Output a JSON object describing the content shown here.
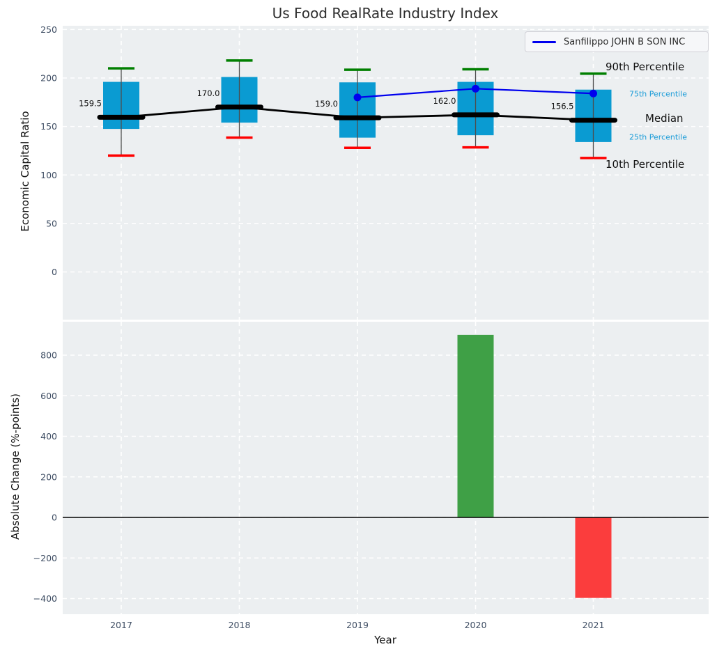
{
  "title": "Us Food RealRate Industry Index",
  "chart_data": [
    {
      "type": "boxplot",
      "title": "Us Food RealRate Industry Index",
      "ylabel": "Economic Capital Ratio",
      "categories": [
        "2017",
        "2018",
        "2019",
        "2020",
        "2021"
      ],
      "yticks": [
        250,
        200,
        150,
        100,
        50,
        0
      ],
      "ylim": [
        -50,
        254
      ],
      "grid": "white-dashed",
      "legend_position": "upper-right",
      "boxes": [
        {
          "year": "2017",
          "p10": 120,
          "p25": 147.5,
          "median": 159.5,
          "p75": 196,
          "p90": 210,
          "label": "159.5"
        },
        {
          "year": "2018",
          "p10": 138.5,
          "p25": 154,
          "median": 170.0,
          "p75": 201,
          "p90": 218,
          "label": "170.0"
        },
        {
          "year": "2019",
          "p10": 128,
          "p25": 138.5,
          "median": 159.0,
          "p75": 195.5,
          "p90": 208.5,
          "label": "159.0"
        },
        {
          "year": "2020",
          "p10": 128.5,
          "p25": 141,
          "median": 162.0,
          "p75": 196,
          "p90": 209,
          "label": "162.0"
        },
        {
          "year": "2021",
          "p10": 117.5,
          "p25": 134,
          "median": 156.5,
          "p75": 188,
          "p90": 204.5,
          "label": "156.5"
        }
      ],
      "series": [
        {
          "name": "Sanfilippo JOHN B SON INC",
          "color": "#0000ee",
          "points": [
            {
              "year": "2019",
              "value": 180
            },
            {
              "year": "2020",
              "value": 189
            },
            {
              "year": "2021",
              "value": 184
            }
          ]
        }
      ],
      "annotations": [
        {
          "text": "90th Percentile",
          "color": "#111111",
          "em": true
        },
        {
          "text": "75th Percentile",
          "color": "#1b9cd8",
          "em": false
        },
        {
          "text": "Median",
          "color": "#111111",
          "em": true
        },
        {
          "text": "25th Percentile",
          "color": "#1b9cd8",
          "em": false
        },
        {
          "text": "10th Percentile",
          "color": "#111111",
          "em": true
        }
      ],
      "colors": {
        "box_fill": "#0a9bd2",
        "median_line": "#000000",
        "p90_cap": "#007f00",
        "p10_cap": "#ff0000",
        "whisker": "#4d4d4d",
        "panel_bg": "#eceff1",
        "tick_text": "#3e4d63"
      }
    },
    {
      "type": "bar",
      "ylabel": "Absolute Change (%-points)",
      "xlabel": "Year",
      "categories": [
        "2017",
        "2018",
        "2019",
        "2020",
        "2021"
      ],
      "values": [
        null,
        null,
        null,
        900,
        -397
      ],
      "yticks": [
        800,
        600,
        400,
        200,
        0,
        -200,
        -400
      ],
      "ylim": [
        -478,
        965
      ],
      "grid": "white-dashed",
      "colors": {
        "positive": "#3fa046",
        "negative": "#fb3d3d",
        "zero_line": "#000000",
        "panel_bg": "#eceff1",
        "tick_text": "#3e4d63"
      }
    }
  ]
}
